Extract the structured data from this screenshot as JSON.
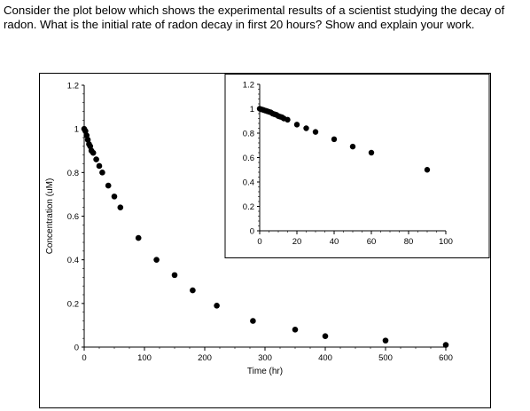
{
  "question": {
    "text": "Consider the plot below which shows the experimental results of a scientist studying the decay of radon. What is the initial rate of radon decay in first 20 hours? Show and explain your work."
  },
  "chart_data": [
    {
      "type": "scatter",
      "title": "",
      "xlabel": "Time (hr)",
      "ylabel": "Concentration (uM)",
      "xlim": [
        0,
        600
      ],
      "ylim": [
        0,
        1.2
      ],
      "xticks": [
        "0",
        "100",
        "200",
        "300",
        "400",
        "500",
        "600"
      ],
      "yticks": [
        "0",
        "0.2",
        "0.4",
        "0.6",
        "0.8",
        "1",
        "1.2"
      ],
      "grid": false,
      "legend": "none",
      "marker_color": "#000000",
      "series": [
        {
          "x": [
            0,
            2,
            4,
            6,
            8,
            10,
            12,
            15,
            20,
            25,
            30,
            40,
            50,
            60,
            90,
            120,
            150,
            180,
            220,
            280,
            350,
            400,
            500,
            600
          ],
          "y": [
            1.0,
            0.99,
            0.97,
            0.95,
            0.93,
            0.92,
            0.9,
            0.89,
            0.86,
            0.83,
            0.8,
            0.74,
            0.69,
            0.64,
            0.5,
            0.4,
            0.33,
            0.26,
            0.19,
            0.12,
            0.08,
            0.05,
            0.03,
            0.01
          ]
        }
      ]
    },
    {
      "type": "scatter",
      "title": "",
      "xlabel": "",
      "ylabel": "",
      "xlim": [
        0,
        100
      ],
      "ylim": [
        0,
        1.2
      ],
      "xticks": [
        "0",
        "20",
        "40",
        "60",
        "80",
        "100"
      ],
      "yticks": [
        "0",
        "0.2",
        "0.4",
        "0.6",
        "0.8",
        "1",
        "1.2"
      ],
      "grid": false,
      "legend": "none",
      "marker_color": "#000000",
      "series": [
        {
          "x": [
            0,
            1,
            2,
            3,
            4,
            5,
            6,
            7,
            8,
            9,
            10,
            11,
            12,
            13,
            15,
            20,
            25,
            30,
            40,
            50,
            60,
            90
          ],
          "y": [
            1.0,
            0.995,
            0.99,
            0.985,
            0.98,
            0.975,
            0.97,
            0.96,
            0.955,
            0.95,
            0.94,
            0.935,
            0.93,
            0.92,
            0.91,
            0.87,
            0.84,
            0.81,
            0.75,
            0.69,
            0.64,
            0.5
          ]
        }
      ]
    }
  ]
}
